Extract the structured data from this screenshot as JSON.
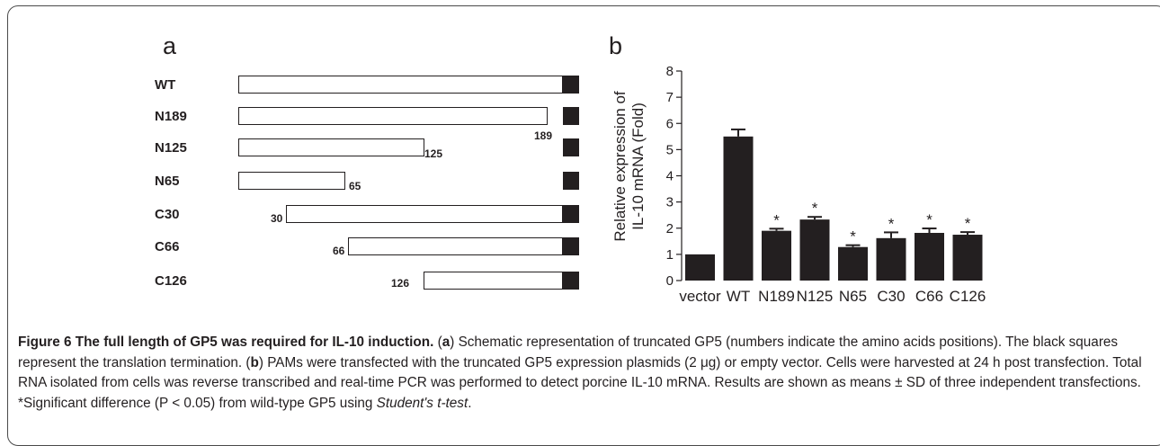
{
  "panel_a": {
    "letter": "a",
    "rows": [
      {
        "label": "WT",
        "start_label": "",
        "end_label": ""
      },
      {
        "label": "N189",
        "start_label": "",
        "end_label": "189"
      },
      {
        "label": "N125",
        "start_label": "",
        "end_label": "125"
      },
      {
        "label": "N65",
        "start_label": "",
        "end_label": "65"
      },
      {
        "label": "C30",
        "start_label": "30",
        "end_label": ""
      },
      {
        "label": "C66",
        "start_label": "66",
        "end_label": ""
      },
      {
        "label": "C126",
        "start_label": "126",
        "end_label": ""
      }
    ]
  },
  "panel_b": {
    "letter": "b"
  },
  "chart_data": {
    "type": "bar",
    "categories": [
      "vector",
      "WT",
      "N189",
      "N125",
      "N65",
      "C30",
      "C66",
      "C126"
    ],
    "values": [
      1.0,
      5.5,
      1.9,
      2.33,
      1.28,
      1.62,
      1.82,
      1.75
    ],
    "errors": [
      0,
      0.27,
      0.08,
      0.1,
      0.07,
      0.22,
      0.17,
      0.1
    ],
    "significance": [
      "",
      "",
      "*",
      "*",
      "*",
      "*",
      "*",
      "*"
    ],
    "ylabel_line1": "Relative expression of",
    "ylabel_line2": "IL-10 mRNA (Fold)",
    "xlabel": "",
    "ylim": [
      0,
      8
    ],
    "yticks": [
      "0",
      "1",
      "2",
      "3",
      "4",
      "5",
      "6",
      "7",
      "8"
    ],
    "bar_color": "#231f20",
    "grid": false,
    "legend": "none"
  },
  "caption": {
    "title": "Figure 6 The full length of GP5 was required for IL-10 induction.",
    "p1": " (",
    "a": "a",
    "t1": ") Schematic representation of truncated GP5 (numbers indicate the amino acids positions). The black squares represent the translation termination. (",
    "b": "b",
    "t2": ") PAMs were transfected with the truncated GP5 expression plasmids (2 μg) or empty vector. Cells were harvested at 24 h post transfection. Total RNA isolated from cells was reverse transcribed and real-time PCR was performed to detect porcine IL-10 mRNA. Results are shown as means ± SD of three independent transfections. *Significant difference (P < 0.05) from wild-type GP5 using ",
    "test": "Student's t-test",
    "end": "."
  }
}
